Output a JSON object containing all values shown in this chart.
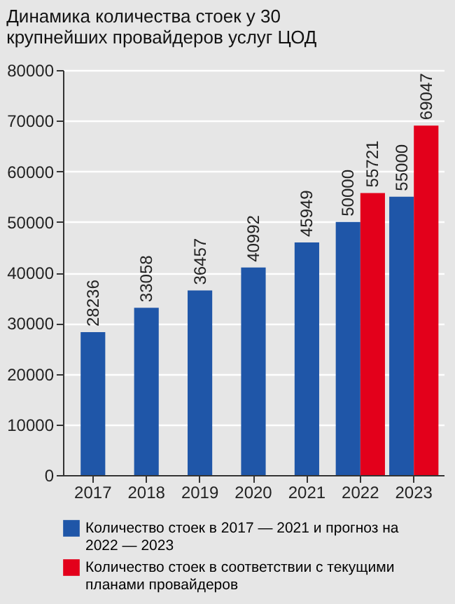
{
  "chart_data": {
    "type": "bar",
    "title": "Динамика количества стоек у 30 крупнейших провайдеров услуг ЦОД",
    "categories": [
      "2017",
      "2018",
      "2019",
      "2020",
      "2021",
      "2022",
      "2023"
    ],
    "series": [
      {
        "name": "Количество стоек в 2017 — 2021 и прогноз на 2022 — 2023",
        "color": "#1f56a8",
        "values": [
          28236,
          33058,
          36457,
          40992,
          45949,
          50000,
          55000
        ]
      },
      {
        "name": "Количество стоек в соответствии с текущими планами провайдеров",
        "color": "#e3001b",
        "values": [
          null,
          null,
          null,
          null,
          null,
          55721,
          69047
        ]
      }
    ],
    "ylim": [
      0,
      80000
    ],
    "yticks": [
      0,
      10000,
      20000,
      30000,
      40000,
      50000,
      60000,
      70000,
      80000
    ],
    "grid": "y",
    "legend": "bottom",
    "data_labels": true
  }
}
